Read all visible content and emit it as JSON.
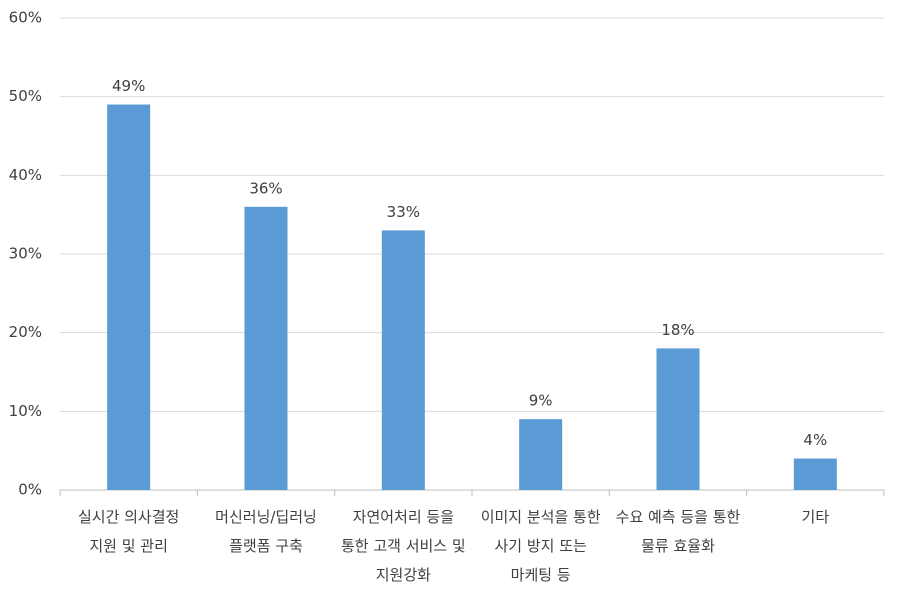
{
  "chart_data": {
    "type": "bar",
    "categories": [
      "실시간 의사결정 지원 및 관리",
      "머신러닝/딥러닝 플랫폼 구축",
      "자연어처리 등을 통한 고객 서비스 및 지원강화",
      "이미지 분석을 통한 사기 방지 또는 마케팅 등",
      "수요 예측 등을 통한 물류 효율화",
      "기타"
    ],
    "values": [
      49,
      36,
      33,
      9,
      18,
      4
    ],
    "value_labels": [
      "49%",
      "36%",
      "33%",
      "9%",
      "18%",
      "4%"
    ],
    "color": "#5b9bd5",
    "ylim": [
      0,
      60
    ],
    "yticks": [
      {
        "value": 0,
        "label": "0%"
      },
      {
        "value": 10,
        "label": "10%"
      },
      {
        "value": 20,
        "label": "20%"
      },
      {
        "value": 30,
        "label": "30%"
      },
      {
        "value": 40,
        "label": "40%"
      },
      {
        "value": 50,
        "label": "50%"
      },
      {
        "value": 60,
        "label": "60%"
      }
    ],
    "grid": true
  }
}
